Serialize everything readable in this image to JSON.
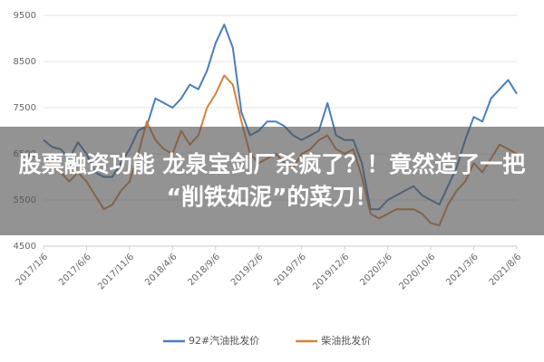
{
  "chart_data": {
    "type": "line",
    "categories": [
      "2017/1/6",
      null,
      null,
      null,
      null,
      "2017/6/6",
      null,
      null,
      null,
      null,
      "2017/11/6",
      null,
      null,
      null,
      null,
      "2018/4/6",
      null,
      null,
      null,
      null,
      "2018/9/6",
      null,
      null,
      null,
      null,
      "2019/2/6",
      null,
      null,
      null,
      null,
      "2019/7/6",
      null,
      null,
      null,
      null,
      "2019/12/6",
      null,
      null,
      null,
      null,
      "2020/5/6",
      null,
      null,
      null,
      null,
      "2020/10/6",
      null,
      null,
      null,
      null,
      "2021/3/6",
      null,
      null,
      null,
      null,
      "2021/8/6"
    ],
    "series": [
      {
        "name": "92#汽油批发价",
        "color": "#4a7ebb",
        "values": [
          6800,
          6650,
          6600,
          6400,
          6750,
          6500,
          6100,
          6000,
          6000,
          6300,
          6600,
          7000,
          7100,
          7700,
          7600,
          7500,
          7700,
          8000,
          7900,
          8300,
          8900,
          9300,
          8800,
          7400,
          6900,
          7000,
          7200,
          7200,
          7100,
          6900,
          6800,
          6900,
          7000,
          7600,
          6900,
          6800,
          6800,
          6300,
          5300,
          5300,
          5500,
          5600,
          5700,
          5800,
          5600,
          5500,
          5400,
          5800,
          6200,
          6800,
          7300,
          7200,
          7700,
          7900,
          8100,
          7800
        ]
      },
      {
        "name": "柴油批发价",
        "color": "#d7813b",
        "values": [
          6500,
          6200,
          6100,
          5900,
          6100,
          5900,
          5600,
          5300,
          5400,
          5700,
          5900,
          6500,
          7200,
          6800,
          6600,
          6500,
          7000,
          6700,
          6900,
          7500,
          7800,
          8200,
          8000,
          7200,
          6500,
          6300,
          6400,
          6500,
          6300,
          6200,
          6500,
          6600,
          6800,
          6900,
          6600,
          6500,
          6600,
          6000,
          5200,
          5100,
          5200,
          5300,
          5300,
          5300,
          5200,
          5000,
          4950,
          5400,
          5700,
          5900,
          6300,
          6100,
          6400,
          6700,
          6600,
          6500
        ]
      }
    ],
    "ylim": [
      4500,
      9500
    ],
    "yticks": [
      4500,
      5500,
      6500,
      7500,
      8500,
      9500
    ],
    "grid": true,
    "legend": "bottom"
  },
  "overlay": {
    "lines": [
      "股票融资功能 龙泉宝剑厂杀疯了？！竟然造了一把",
      "“削铁如泥”的菜刀！"
    ]
  }
}
